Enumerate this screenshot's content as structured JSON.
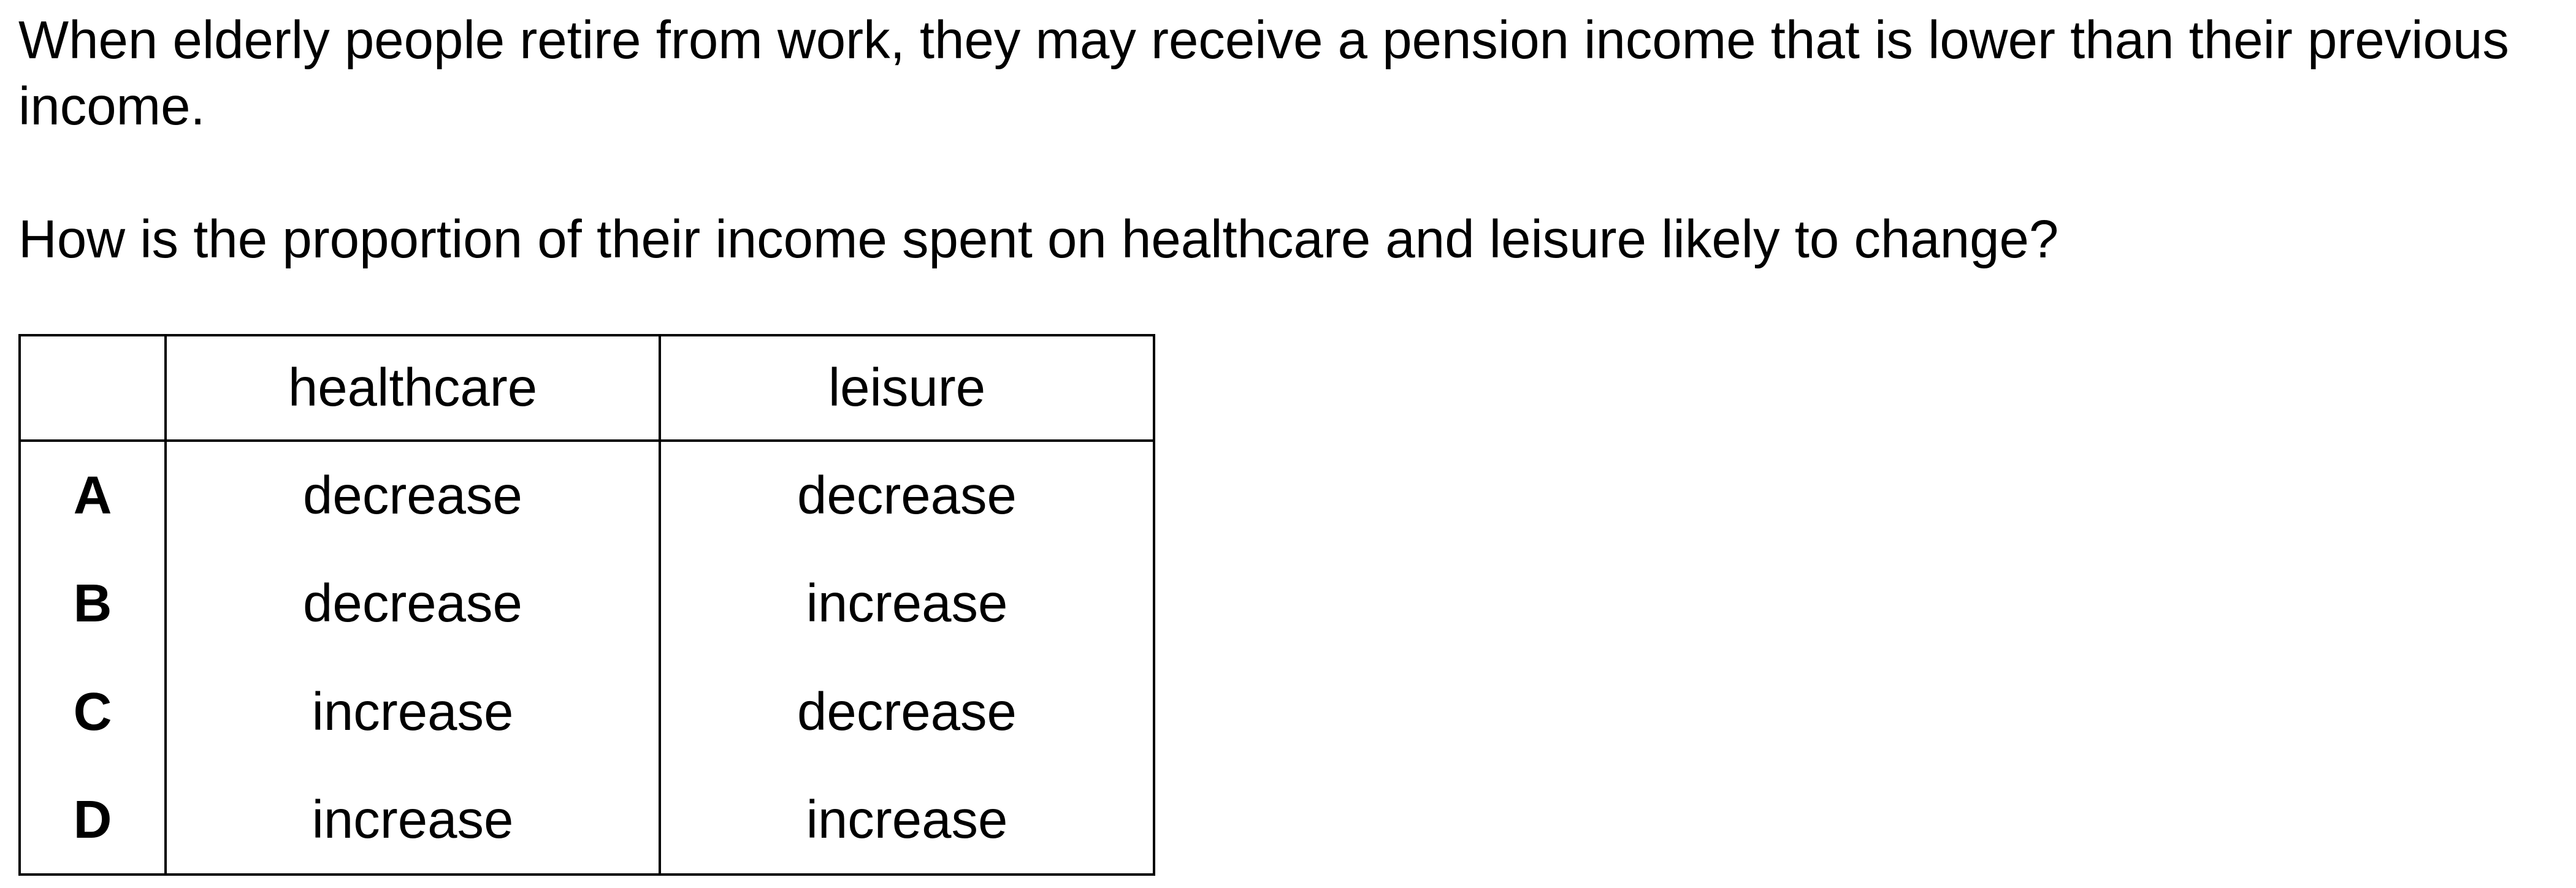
{
  "question": {
    "stem": "When elderly people retire from work, they may receive a pension income that is lower than their previous income.",
    "prompt": "How is the proportion of their income spent on healthcare and leisure likely to change?"
  },
  "table": {
    "headers": {
      "corner": "",
      "healthcare": "healthcare",
      "leisure": "leisure"
    },
    "rows": [
      {
        "letter": "A",
        "healthcare": "decrease",
        "leisure": "decrease"
      },
      {
        "letter": "B",
        "healthcare": "decrease",
        "leisure": "increase"
      },
      {
        "letter": "C",
        "healthcare": "increase",
        "leisure": "decrease"
      },
      {
        "letter": "D",
        "healthcare": "increase",
        "leisure": "increase"
      }
    ]
  }
}
